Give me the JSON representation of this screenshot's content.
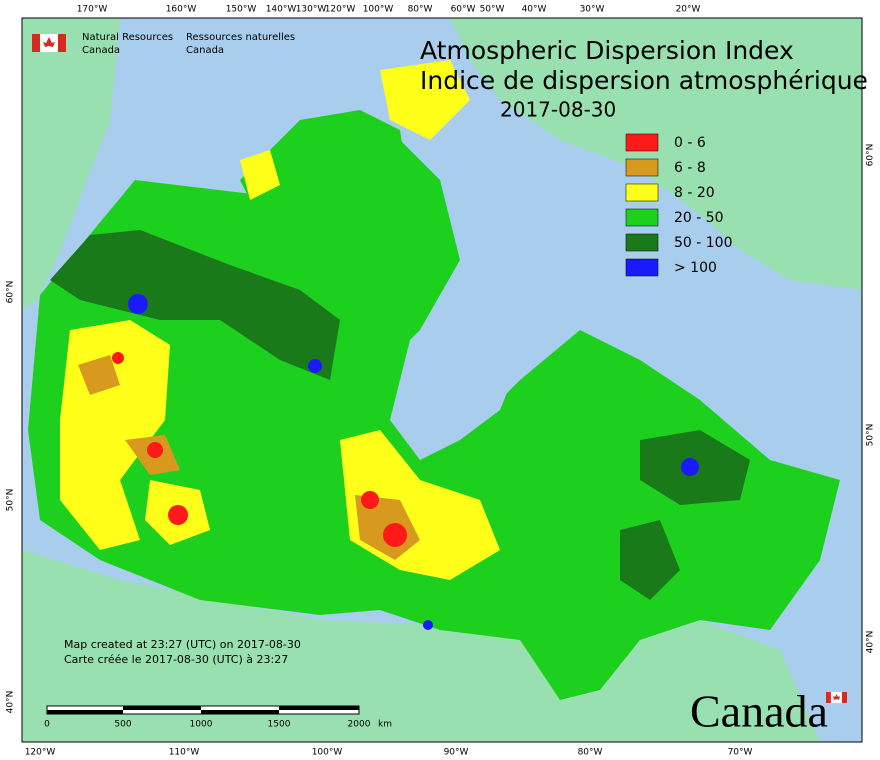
{
  "header": {
    "org_en": [
      "Natural Resources",
      "Canada"
    ],
    "org_fr": [
      "Ressources naturelles",
      "Canada"
    ]
  },
  "title": [
    "Atmospheric Dispersion Index",
    "Indice de dispersion atmosphérique",
    "2017-08-30"
  ],
  "legend": [
    {
      "label": "0 - 6",
      "color": "#ff1a1a"
    },
    {
      "label": "6 - 8",
      "color": "#d89a1e"
    },
    {
      "label": "8 - 20",
      "color": "#ffff1a"
    },
    {
      "label": "20 - 50",
      "color": "#1ed01e"
    },
    {
      "label": "50 - 100",
      "color": "#1a7a1a"
    },
    {
      "label": "> 100",
      "color": "#1a1aff"
    }
  ],
  "top_longitudes": [
    "170°W",
    "160°W",
    "150°W",
    "140°W",
    "130°W",
    "120°W",
    "100°W",
    "80°W",
    "60°W",
    "50°W",
    "40°W",
    "30°W",
    "20°W"
  ],
  "bottom_longitudes": [
    "120°W",
    "110°W",
    "100°W",
    "90°W",
    "80°W",
    "70°W"
  ],
  "left_latitudes": [
    "60°N",
    "50°N",
    "40°N"
  ],
  "right_latitudes": [
    "60°N",
    "50°N",
    "40°N"
  ],
  "notes": [
    "Map created at 23:27 (UTC) on 2017-08-30",
    "Carte créée le 2017-08-30 (UTC) à 23:27"
  ],
  "scale": {
    "ticks": [
      0,
      500,
      1000,
      1500,
      2000
    ],
    "unit": "km"
  },
  "wordmark": "Canada"
}
